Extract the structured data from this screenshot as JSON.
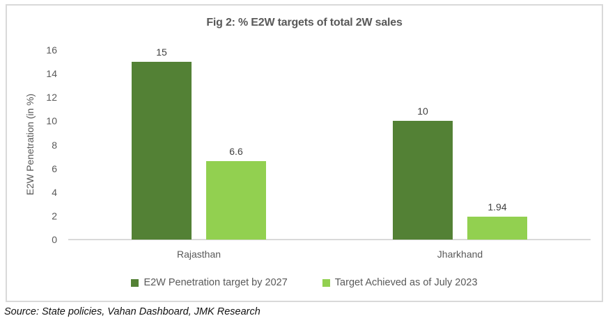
{
  "chart_title": "Fig 2: % E2W targets of total 2W sales",
  "source_note": "Source: State policies, Vahan Dashboard, JMK Research",
  "colors": {
    "frame_border": "#d9d9d9",
    "axis_line": "#d9d9d9",
    "axis_text": "#595959",
    "value_label_text": "#404040",
    "dark_green": "#538135",
    "light_green": "#92d050"
  },
  "chart_data": {
    "type": "bar",
    "title": "Fig 2: % E2W targets of total 2W sales",
    "xlabel": "",
    "ylabel": "E2W Penetration (in %)",
    "ylim": [
      0,
      16
    ],
    "yticks": [
      0,
      2,
      4,
      6,
      8,
      10,
      12,
      14,
      16
    ],
    "grid": false,
    "legend_position": "bottom",
    "categories": [
      "Rajasthan",
      "Jharkhand"
    ],
    "series": [
      {
        "name": "E2W Penetration target by 2027",
        "color": "#538135",
        "values": [
          15,
          10
        ],
        "value_labels": [
          "15",
          "10"
        ]
      },
      {
        "name": "Target Achieved as of July 2023",
        "color": "#92d050",
        "values": [
          6.6,
          1.94
        ],
        "value_labels": [
          "6.6",
          "1.94"
        ]
      }
    ]
  }
}
